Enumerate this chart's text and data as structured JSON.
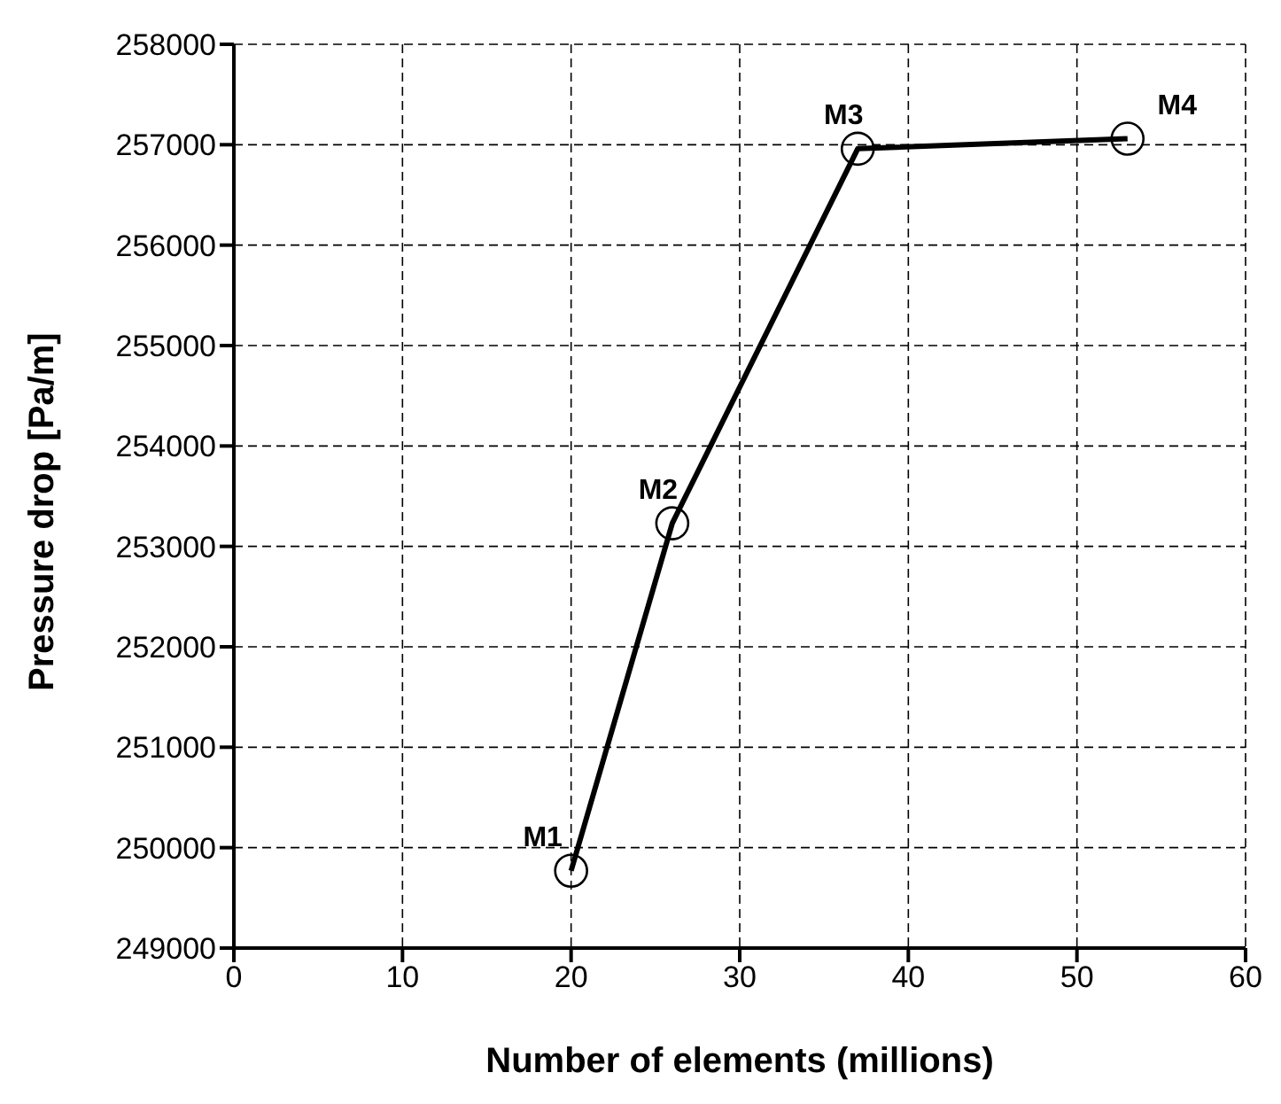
{
  "chart_data": {
    "type": "line",
    "xlabel": "Number of elements (millions)",
    "ylabel": "Pressure drop [Pa/m]",
    "x": [
      20,
      26,
      37,
      53
    ],
    "series": [
      {
        "color": "#000000",
        "values": [
          249770,
          253230,
          256960,
          257060
        ]
      }
    ],
    "xlim": [
      0,
      60
    ],
    "xticks": [
      0,
      10,
      20,
      30,
      40,
      50,
      60
    ],
    "ylim": [
      249000,
      258000
    ],
    "yticks": [
      249000,
      250000,
      251000,
      252000,
      253000,
      254000,
      255000,
      256000,
      257000,
      258000
    ],
    "grid": true,
    "marker": "circle",
    "line_style": "solid",
    "annotations": [
      {
        "text": "M1",
        "x": 20,
        "y": 249770
      },
      {
        "text": "M2",
        "x": 26,
        "y": 253230
      },
      {
        "text": "M3",
        "x": 37,
        "y": 256960
      },
      {
        "text": "M4",
        "x": 53,
        "y": 257060
      }
    ]
  }
}
